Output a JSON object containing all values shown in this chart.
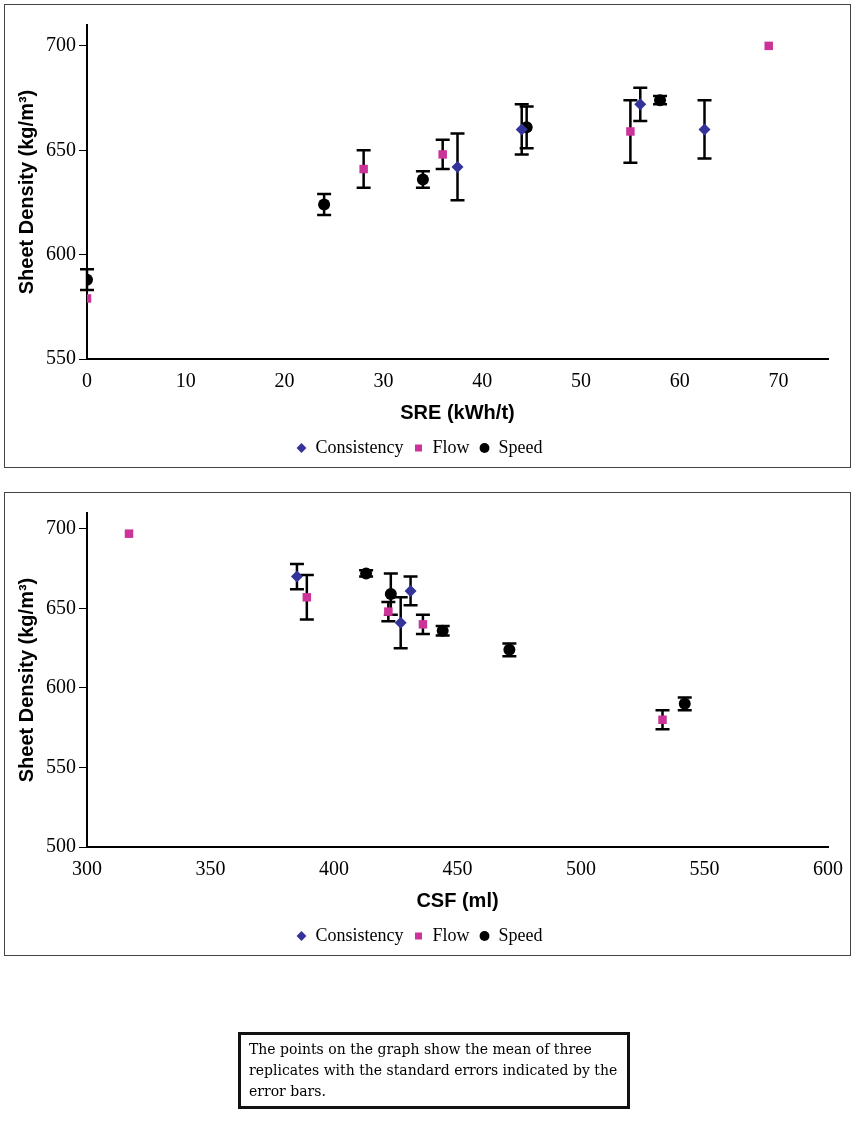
{
  "chart_data": [
    {
      "type": "scatter",
      "xlabel": "SRE (kWh/t)",
      "ylabel": "Sheet Density (kg/m³)",
      "xlim": [
        0,
        75
      ],
      "xticks": [
        0,
        10,
        20,
        30,
        40,
        50,
        60,
        70
      ],
      "ylim": [
        550,
        710
      ],
      "yticks": [
        550,
        600,
        650,
        700
      ],
      "grid": false,
      "legend": "bottom",
      "series": [
        {
          "name": "Consistency",
          "color": "#333399",
          "marker": "diamond",
          "x": [
            37.5,
            44,
            56,
            62.5
          ],
          "values": [
            642,
            660,
            672,
            660
          ],
          "errors": [
            16,
            12,
            8,
            14
          ]
        },
        {
          "name": "Flow",
          "color": "#cc3399",
          "marker": "square",
          "x": [
            0,
            28,
            36,
            55,
            69
          ],
          "values": [
            579,
            641,
            648,
            659,
            700
          ],
          "errors": [
            null,
            9,
            7,
            15,
            null
          ]
        },
        {
          "name": "Speed",
          "color": "#000000",
          "marker": "circle",
          "x": [
            0,
            24,
            34,
            44.5,
            58
          ],
          "values": [
            588,
            624,
            636,
            661,
            674
          ],
          "errors": [
            5,
            5,
            4,
            10,
            2
          ]
        }
      ]
    },
    {
      "type": "scatter",
      "xlabel": "CSF (ml)",
      "ylabel": "Sheet Density (kg/m³)",
      "xlim": [
        300,
        600
      ],
      "xticks": [
        300,
        350,
        400,
        450,
        500,
        550,
        600
      ],
      "ylim": [
        500,
        710
      ],
      "yticks": [
        500,
        550,
        600,
        650,
        700
      ],
      "grid": false,
      "legend": "bottom",
      "annotations": [
        "The points on the graph show the mean of three replicates with the standard errors indicated by the error bars."
      ],
      "series": [
        {
          "name": "Consistency",
          "color": "#333399",
          "marker": "diamond",
          "x": [
            385,
            427,
            431
          ],
          "values": [
            670,
            641,
            661
          ],
          "errors": [
            8,
            16,
            9
          ]
        },
        {
          "name": "Flow",
          "color": "#cc3399",
          "marker": "square",
          "x": [
            317,
            389,
            422,
            436,
            533
          ],
          "values": [
            697,
            657,
            648,
            640,
            580
          ],
          "errors": [
            null,
            14,
            6,
            6,
            6
          ]
        },
        {
          "name": "Speed",
          "color": "#000000",
          "marker": "circle",
          "x": [
            413,
            423,
            444,
            471,
            542
          ],
          "values": [
            672,
            659,
            636,
            624,
            590
          ],
          "errors": [
            2,
            13,
            3,
            4,
            4
          ]
        }
      ]
    }
  ]
}
